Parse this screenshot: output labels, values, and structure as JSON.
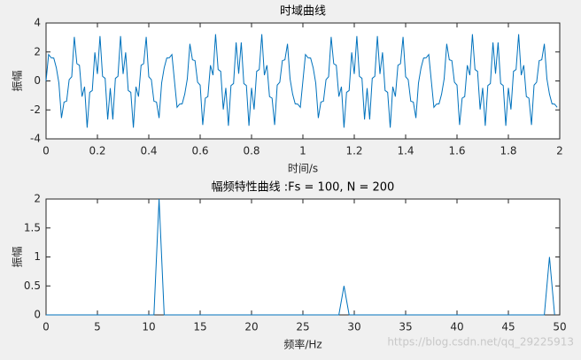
{
  "chart_data": [
    {
      "type": "line",
      "title": "时域曲线",
      "xlabel": "时间/s",
      "ylabel": "振幅",
      "x": [
        0,
        0.01,
        0.02,
        0.03,
        0.04,
        0.05,
        0.06,
        0.07,
        0.08,
        0.09,
        0.1,
        0.11,
        0.12,
        0.13,
        0.14,
        0.15,
        0.16,
        0.17,
        0.18,
        0.19,
        0.2,
        0.21,
        0.22,
        0.23,
        0.24,
        0.25,
        0.26,
        0.27,
        0.28,
        0.29,
        0.3,
        0.31,
        0.32,
        0.33,
        0.34,
        0.35,
        0.36,
        0.37,
        0.38,
        0.39,
        0.4,
        0.41,
        0.42,
        0.43,
        0.44,
        0.45,
        0.46,
        0.47,
        0.48,
        0.49,
        0.5,
        0.51,
        0.52,
        0.53,
        0.54,
        0.55,
        0.56,
        0.57,
        0.58,
        0.59,
        0.6,
        0.61,
        0.62,
        0.63,
        0.64,
        0.65,
        0.66,
        0.67,
        0.68,
        0.69,
        0.7,
        0.71,
        0.72,
        0.73,
        0.74,
        0.75,
        0.76,
        0.77,
        0.78,
        0.79,
        0.8,
        0.81,
        0.82,
        0.83,
        0.84,
        0.85,
        0.86,
        0.87,
        0.88,
        0.89,
        0.9,
        0.91,
        0.92,
        0.93,
        0.94,
        0.95,
        0.96,
        0.97,
        0.98,
        0.99,
        1,
        1.01,
        1.02,
        1.03,
        1.04,
        1.05,
        1.06,
        1.07,
        1.08,
        1.09,
        1.1,
        1.11,
        1.12,
        1.13,
        1.14,
        1.15,
        1.16,
        1.17,
        1.18,
        1.19,
        1.2,
        1.21,
        1.22,
        1.23,
        1.24,
        1.25,
        1.26,
        1.27,
        1.28,
        1.29,
        1.3,
        1.31,
        1.32,
        1.33,
        1.34,
        1.35,
        1.36,
        1.37,
        1.38,
        1.39,
        1.4,
        1.41,
        1.42,
        1.43,
        1.44,
        1.45,
        1.46,
        1.47,
        1.48,
        1.49,
        1.5,
        1.51,
        1.52,
        1.53,
        1.54,
        1.55,
        1.56,
        1.57,
        1.58,
        1.59,
        1.6,
        1.61,
        1.62,
        1.63,
        1.64,
        1.65,
        1.66,
        1.67,
        1.68,
        1.69,
        1.7,
        1.71,
        1.72,
        1.73,
        1.74,
        1.75,
        1.76,
        1.77,
        1.78,
        1.79,
        1.8,
        1.81,
        1.82,
        1.83,
        1.84,
        1.85,
        1.86,
        1.87,
        1.88,
        1.89,
        1.9,
        1.91,
        1.92,
        1.93,
        1.94,
        1.95,
        1.96,
        1.97,
        1.98,
        1.99
      ],
      "series": [
        {
          "color": "#0072bd",
          "values": [
            0,
            1.82,
            1.6,
            1.58,
            0.91,
            -0.15,
            -2.56,
            -1.46,
            -1.4,
            0.09,
            0.29,
            3.04,
            1.19,
            1.08,
            -1.08,
            -0.4,
            -3.23,
            -0.79,
            -0.66,
            1.97,
            0.48,
            3.1,
            0.32,
            0.18,
            -2.66,
            -0.5,
            -2.66,
            0.18,
            0.32,
            3.1,
            0.48,
            1.97,
            -0.66,
            -0.79,
            -3.23,
            -0.4,
            -1.08,
            1.08,
            1.19,
            3.04,
            0.29,
            0.09,
            -1.4,
            -1.46,
            -2.56,
            -0.15,
            0.91,
            1.58,
            1.6,
            1.82,
            0,
            -1.82,
            -1.6,
            -1.58,
            -0.91,
            0.15,
            2.56,
            1.46,
            1.4,
            -0.09,
            -0.29,
            -3.04,
            -1.19,
            -1.08,
            1.08,
            0.4,
            3.23,
            0.79,
            0.66,
            -1.97,
            -0.48,
            -3.1,
            -0.32,
            -0.18,
            2.66,
            0.5,
            2.66,
            -0.18,
            -0.32,
            -3.1,
            -0.48,
            -1.97,
            0.66,
            0.79,
            3.23,
            0.4,
            1.08,
            -1.08,
            -1.19,
            -3.04,
            -0.29,
            -0.09,
            1.4,
            1.46,
            2.56,
            0.15,
            -0.91,
            -1.58,
            -1.6,
            -1.82,
            0,
            1.82,
            1.6,
            1.58,
            0.91,
            -0.15,
            -2.56,
            -1.46,
            -1.4,
            0.09,
            0.29,
            3.04,
            1.19,
            1.08,
            -1.08,
            -0.4,
            -3.23,
            -0.79,
            -0.66,
            1.97,
            0.48,
            3.1,
            0.32,
            0.18,
            -2.66,
            -0.5,
            -2.66,
            0.18,
            0.32,
            3.1,
            0.48,
            1.97,
            -0.66,
            -0.79,
            -3.23,
            -0.4,
            -1.08,
            1.08,
            1.19,
            3.04,
            0.29,
            0.09,
            -1.4,
            -1.46,
            -2.56,
            -0.15,
            0.91,
            1.58,
            1.6,
            1.82,
            0,
            -1.82,
            -1.6,
            -1.58,
            -0.91,
            0.15,
            2.56,
            1.46,
            1.4,
            -0.09,
            -0.29,
            -3.04,
            -1.19,
            -1.08,
            1.08,
            0.4,
            3.23,
            0.79,
            0.66,
            -1.97,
            -0.48,
            -3.1,
            -0.32,
            -0.18,
            2.66,
            0.5,
            2.66,
            -0.18,
            -0.32,
            -3.1,
            -0.48,
            -1.97,
            0.66,
            0.79,
            3.23,
            0.4,
            1.08,
            -1.08,
            -1.19,
            -3.04,
            -0.29,
            -0.09,
            1.4,
            1.46,
            2.56,
            0.15,
            -0.91,
            -1.58,
            -1.6,
            -1.82
          ]
        }
      ],
      "xlim": [
        0,
        2
      ],
      "xticks": [
        0,
        0.2,
        0.4,
        0.6,
        0.8,
        1,
        1.2,
        1.4,
        1.6,
        1.8,
        2
      ],
      "ylim": [
        -4,
        4
      ],
      "yticks": [
        -4,
        -2,
        0,
        2,
        4
      ]
    },
    {
      "type": "line",
      "title": "幅频特性曲线 :Fs = 100, N = 200",
      "xlabel": "频率/Hz",
      "ylabel": "振幅",
      "x": [
        0,
        0.5,
        1,
        1.5,
        2,
        2.5,
        3,
        3.5,
        4,
        4.5,
        5,
        5.5,
        6,
        6.5,
        7,
        7.5,
        8,
        8.5,
        9,
        9.5,
        10,
        10.5,
        11,
        11.5,
        12,
        12.5,
        13,
        13.5,
        14,
        14.5,
        15,
        15.5,
        16,
        16.5,
        17,
        17.5,
        18,
        18.5,
        19,
        19.5,
        20,
        20.5,
        21,
        21.5,
        22,
        22.5,
        23,
        23.5,
        24,
        24.5,
        25,
        25.5,
        26,
        26.5,
        27,
        27.5,
        28,
        28.5,
        29,
        29.5,
        30,
        30.5,
        31,
        31.5,
        32,
        32.5,
        33,
        33.5,
        34,
        34.5,
        35,
        35.5,
        36,
        36.5,
        37,
        37.5,
        38,
        38.5,
        39,
        39.5,
        40,
        40.5,
        41,
        41.5,
        42,
        42.5,
        43,
        43.5,
        44,
        44.5,
        45,
        45.5,
        46,
        46.5,
        47,
        47.5,
        48,
        48.5,
        49,
        49.5
      ],
      "series": [
        {
          "color": "#0072bd",
          "values": [
            0,
            0,
            0,
            0,
            0,
            0,
            0,
            0,
            0,
            0,
            0,
            0,
            0,
            0,
            0,
            0,
            0,
            0,
            0,
            0,
            0,
            0,
            2,
            0,
            0,
            0,
            0,
            0,
            0,
            0,
            0,
            0,
            0,
            0,
            0,
            0,
            0,
            0,
            0,
            0,
            0,
            0,
            0,
            0,
            0,
            0,
            0,
            0,
            0,
            0,
            0,
            0,
            0,
            0,
            0,
            0,
            0,
            0,
            0.5,
            0,
            0,
            0,
            0,
            0,
            0,
            0,
            0,
            0,
            0,
            0,
            0,
            0,
            0,
            0,
            0,
            0,
            0,
            0,
            0,
            0,
            0,
            0,
            0,
            0,
            0,
            0,
            0,
            0,
            0,
            0,
            0,
            0,
            0,
            0,
            0,
            0,
            0,
            0,
            1,
            0
          ]
        }
      ],
      "xlim": [
        0,
        50
      ],
      "xticks": [
        0,
        5,
        10,
        15,
        20,
        25,
        30,
        35,
        40,
        45,
        50
      ],
      "ylim": [
        0,
        2
      ],
      "yticks": [
        0,
        0.5,
        1,
        1.5,
        2
      ]
    }
  ],
  "watermark": "https://blog.csdn.net/qq_29225913"
}
